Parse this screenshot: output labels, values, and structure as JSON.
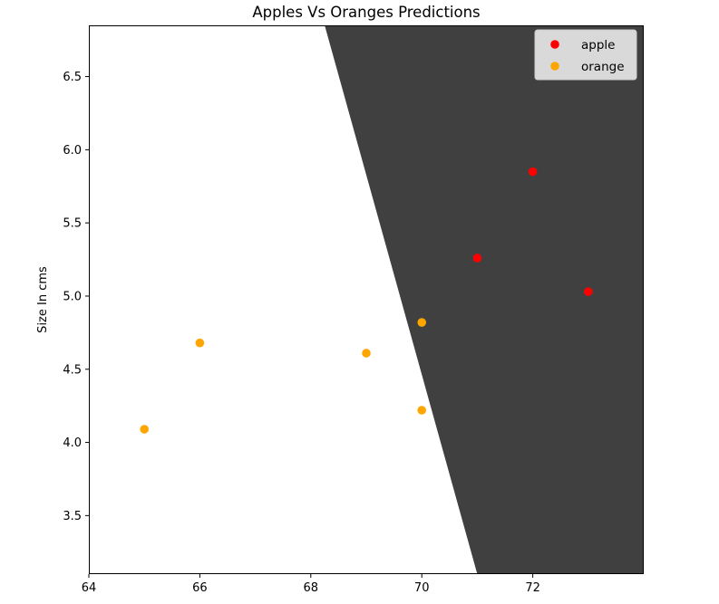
{
  "chart_data": {
    "type": "scatter",
    "title": "Apples Vs Oranges Predictions",
    "xlabel": "",
    "ylabel": "Size In cms",
    "xlim": [
      64,
      74
    ],
    "ylim": [
      3.1,
      6.85
    ],
    "xticks": [
      64,
      66,
      68,
      70,
      72
    ],
    "yticks": [
      3.5,
      4.0,
      4.5,
      5.0,
      5.5,
      6.0,
      6.5
    ],
    "grid": false,
    "legend_position": "top-right",
    "decision_region": {
      "class": "apple",
      "color": "#404040",
      "boundary": [
        [
          68.25,
          6.85
        ],
        [
          71.0,
          3.1
        ]
      ]
    },
    "series": [
      {
        "name": "apple",
        "color": "#ff0000",
        "points": [
          [
            71,
            5.26
          ],
          [
            72,
            5.85
          ],
          [
            73,
            5.03
          ]
        ]
      },
      {
        "name": "orange",
        "color": "#ffa500",
        "points": [
          [
            65,
            4.09
          ],
          [
            66,
            4.68
          ],
          [
            69,
            4.61
          ],
          [
            70,
            4.82
          ],
          [
            70,
            4.22
          ]
        ]
      }
    ]
  }
}
